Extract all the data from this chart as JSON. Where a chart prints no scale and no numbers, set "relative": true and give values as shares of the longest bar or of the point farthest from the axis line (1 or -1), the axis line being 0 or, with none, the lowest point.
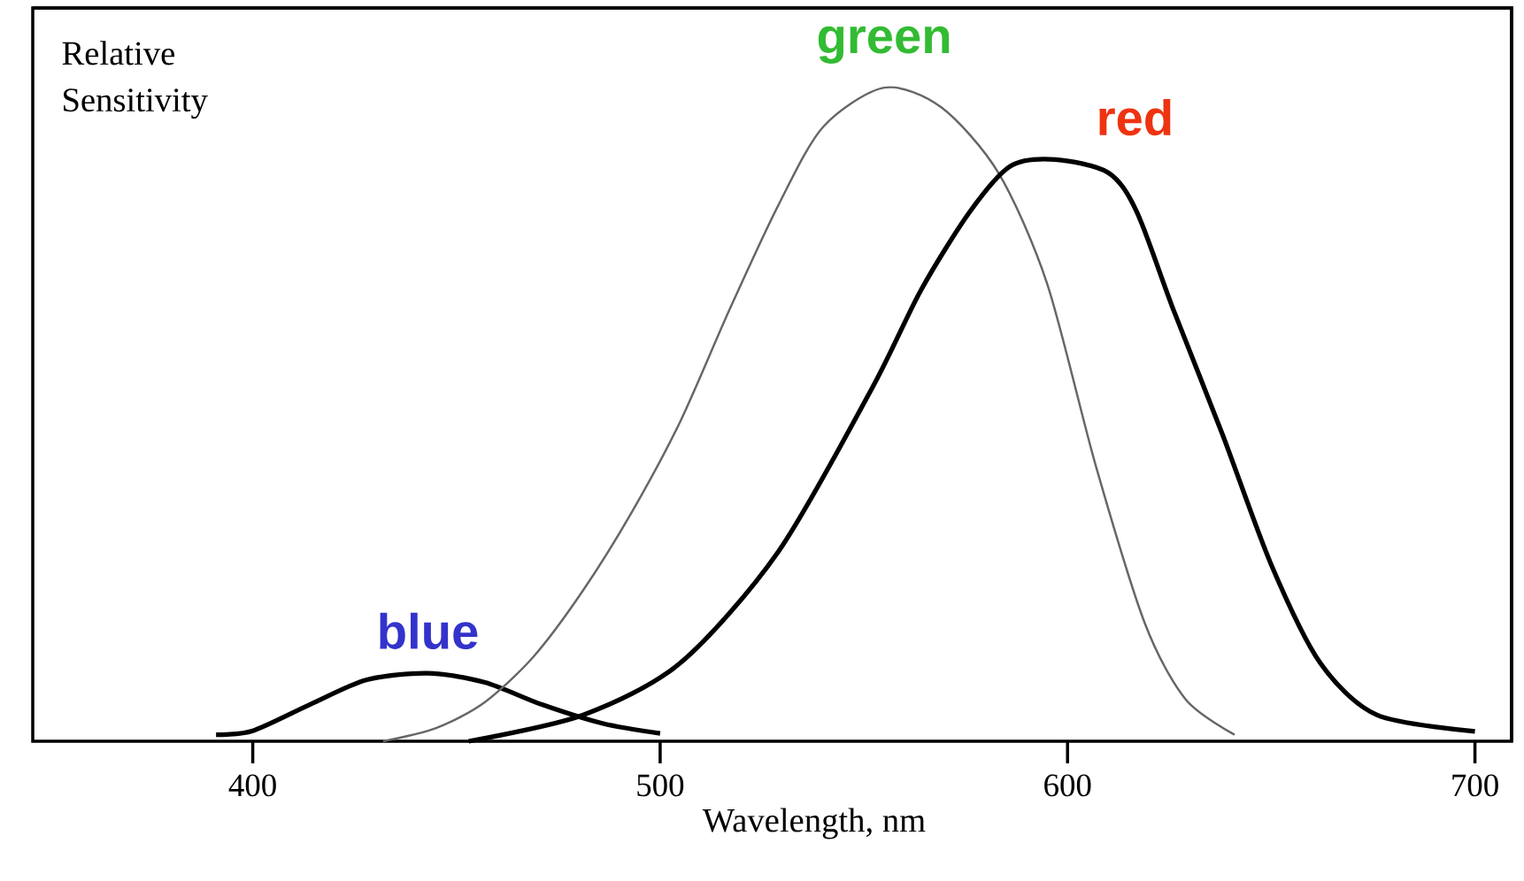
{
  "chart_data": {
    "type": "line",
    "relative": true,
    "xlabel": "Wavelength, nm",
    "ylabel": "Relative Sensitivity",
    "xlim": [
      346,
      709
    ],
    "xticks": [
      400,
      500,
      600,
      700
    ],
    "marker": "none",
    "line_style": "solid",
    "grid": false,
    "series": [
      {
        "name": "blue",
        "color": "#000000",
        "x": [
          391,
          400,
          414,
          428,
          443,
          457,
          471,
          486,
          500
        ],
        "values": [
          0.01,
          0.016,
          0.056,
          0.094,
          0.104,
          0.09,
          0.056,
          0.027,
          0.012
        ]
      },
      {
        "name": "green",
        "color": "#666666",
        "x": [
          432,
          445,
          457,
          469,
          481,
          493,
          505,
          517,
          529,
          540,
          555,
          569,
          583,
          595,
          607,
          619,
          629,
          641
        ],
        "values": [
          0,
          0.02,
          0.06,
          0.13,
          0.23,
          0.35,
          0.49,
          0.66,
          0.82,
          0.94,
          1.0,
          0.97,
          0.87,
          0.7,
          0.42,
          0.18,
          0.064,
          0.01
        ]
      },
      {
        "name": "red",
        "color": "#000000",
        "x": [
          453,
          481,
          505,
          529,
          552,
          564,
          576,
          586,
          597,
          610,
          617,
          626,
          638,
          650,
          662,
          676,
          700
        ],
        "values": [
          0,
          0.04,
          0.12,
          0.29,
          0.54,
          0.69,
          0.81,
          0.88,
          0.89,
          0.87,
          0.81,
          0.66,
          0.47,
          0.27,
          0.12,
          0.04,
          0.015
        ]
      }
    ]
  }
}
